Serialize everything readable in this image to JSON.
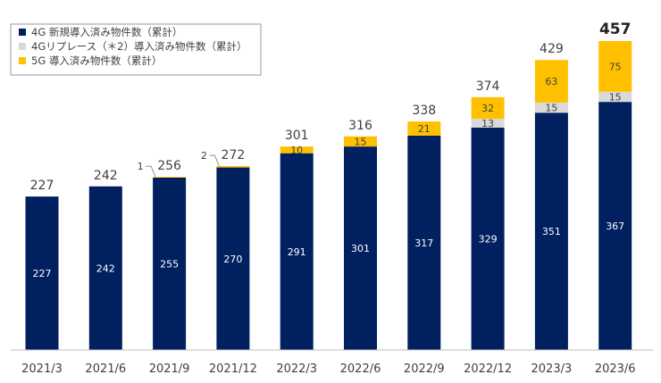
{
  "chart_data": {
    "type": "bar",
    "stacked": true,
    "categories": [
      "2021/3",
      "2021/6",
      "2021/9",
      "2021/12",
      "2022/3",
      "2022/6",
      "2022/9",
      "2022/12",
      "2023/3",
      "2023/6"
    ],
    "series": [
      {
        "name": "4G 新規導入済み物件数（累計）",
        "color": "#002060",
        "values": [
          227,
          242,
          255,
          270,
          291,
          301,
          317,
          329,
          351,
          367
        ]
      },
      {
        "name": "4Gリプレース（＊2）導入済み物件数（累計）",
        "color": "#d9d9d9",
        "values": [
          0,
          0,
          0,
          0,
          0,
          0,
          0,
          13,
          15,
          15
        ]
      },
      {
        "name": "5G 導入済み物件数（累計）",
        "color": "#ffc000",
        "values": [
          0,
          0,
          1,
          2,
          10,
          15,
          21,
          32,
          63,
          75
        ]
      }
    ],
    "totals": [
      227,
      242,
      256,
      272,
      301,
      316,
      338,
      374,
      429,
      457
    ],
    "legend_position": "top-left",
    "grid": false,
    "ylim": [
      0,
      480
    ]
  }
}
